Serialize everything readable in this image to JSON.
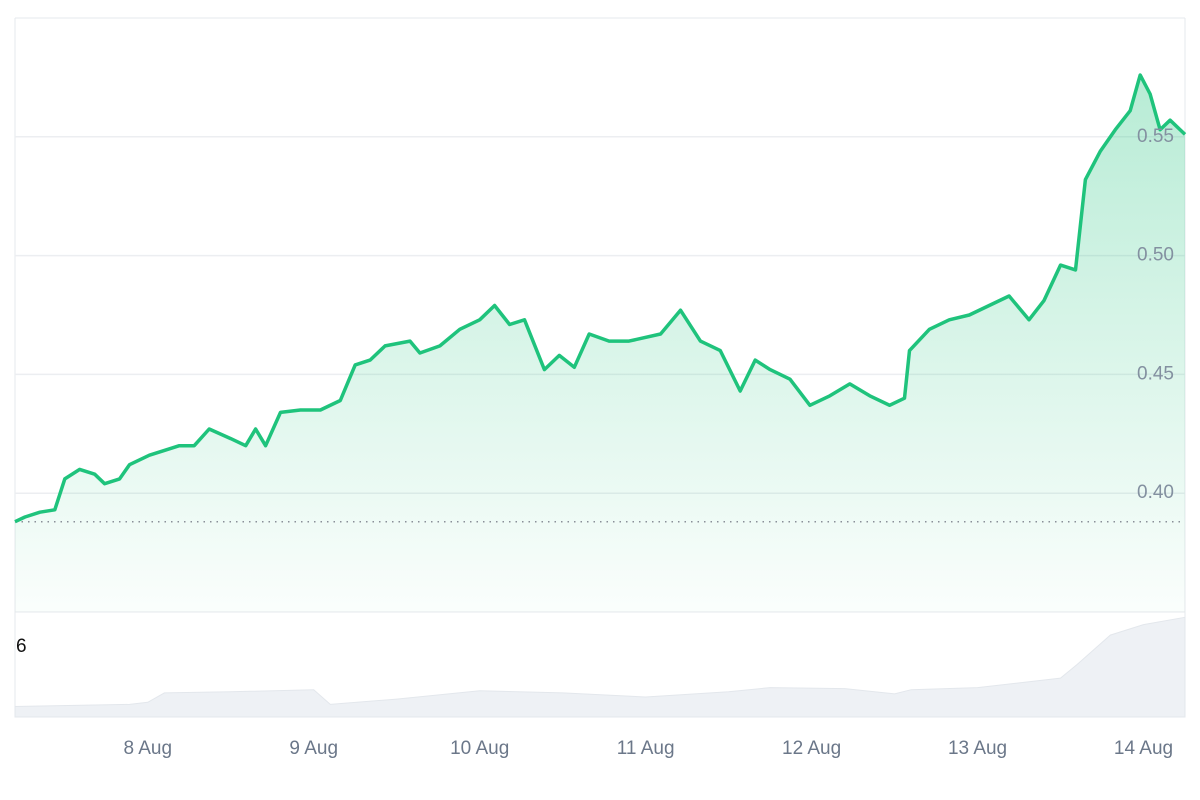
{
  "chart_data": {
    "type": "area",
    "color": "#1fc37c",
    "volume_color": "#eef1f5",
    "x": [
      7.2,
      7.26,
      7.35,
      7.44,
      7.5,
      7.59,
      7.68,
      7.74,
      7.83,
      7.89,
      8.01,
      8.1,
      8.19,
      8.28,
      8.37,
      8.5,
      8.59,
      8.65,
      8.71,
      8.8,
      8.92,
      9.04,
      9.16,
      9.25,
      9.34,
      9.43,
      9.58,
      9.64,
      9.76,
      9.88,
      10.0,
      10.09,
      10.18,
      10.27,
      10.39,
      10.48,
      10.57,
      10.66,
      10.78,
      10.9,
      11.09,
      11.21,
      11.33,
      11.45,
      11.57,
      11.66,
      11.75,
      11.87,
      11.99,
      12.11,
      12.23,
      12.35,
      12.47,
      12.56,
      12.59,
      12.71,
      12.83,
      12.95,
      13.07,
      13.19,
      13.31,
      13.4,
      13.5,
      13.59,
      13.65,
      13.74,
      13.83,
      13.92,
      13.98,
      14.04,
      14.1,
      14.16,
      14.25
    ],
    "values": [
      0.388,
      0.39,
      0.392,
      0.393,
      0.406,
      0.41,
      0.408,
      0.404,
      0.406,
      0.412,
      0.416,
      0.418,
      0.42,
      0.42,
      0.427,
      0.423,
      0.42,
      0.427,
      0.42,
      0.434,
      0.435,
      0.435,
      0.439,
      0.454,
      0.456,
      0.462,
      0.464,
      0.459,
      0.462,
      0.469,
      0.473,
      0.479,
      0.471,
      0.473,
      0.452,
      0.458,
      0.453,
      0.467,
      0.464,
      0.464,
      0.467,
      0.477,
      0.464,
      0.46,
      0.443,
      0.456,
      0.452,
      0.448,
      0.437,
      0.441,
      0.446,
      0.441,
      0.437,
      0.44,
      0.46,
      0.469,
      0.473,
      0.475,
      0.479,
      0.483,
      0.473,
      0.481,
      0.496,
      0.494,
      0.532,
      0.544,
      0.553,
      0.561,
      0.576,
      0.568,
      0.553,
      0.557,
      0.551
    ],
    "reference_line": 0.388,
    "volume": {
      "label": "6",
      "x": [
        7.2,
        7.89,
        8.0,
        8.1,
        8.5,
        9.0,
        9.1,
        9.5,
        10.0,
        10.5,
        11.0,
        11.5,
        11.75,
        12.2,
        12.5,
        12.6,
        13.0,
        13.5,
        13.6,
        13.8,
        14.0,
        14.25
      ],
      "values": [
        10,
        12,
        14,
        23,
        24,
        26,
        12,
        17,
        25,
        23,
        19,
        24,
        28,
        27,
        22,
        26,
        28,
        37,
        50,
        78,
        88,
        95
      ],
      "ylim": [
        0,
        100
      ]
    },
    "xlim": [
      7.2,
      14.25
    ],
    "xticks": [
      {
        "value": 8,
        "label": "8 Aug"
      },
      {
        "value": 9,
        "label": "9 Aug"
      },
      {
        "value": 10,
        "label": "10 Aug"
      },
      {
        "value": 11,
        "label": "11 Aug"
      },
      {
        "value": 12,
        "label": "12 Aug"
      },
      {
        "value": 13,
        "label": "13 Aug"
      },
      {
        "value": 14,
        "label": "14 Aug"
      }
    ],
    "ylim": [
      0.35,
      0.6
    ],
    "yticks": [
      {
        "value": 0.4,
        "label": "0.40"
      },
      {
        "value": 0.45,
        "label": "0.45"
      },
      {
        "value": 0.5,
        "label": "0.50"
      },
      {
        "value": 0.55,
        "label": "0.55"
      }
    ],
    "grid": true
  }
}
